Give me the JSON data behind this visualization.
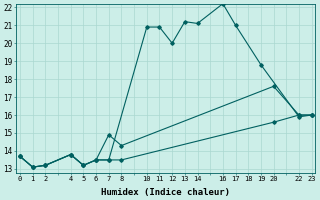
{
  "xlabel": "Humidex (Indice chaleur)",
  "bg_color": "#cceee8",
  "line_color": "#006060",
  "grid_color": "#aad8d0",
  "ylim": [
    13,
    22
  ],
  "xlim": [
    -0.3,
    23.3
  ],
  "yticks": [
    13,
    14,
    15,
    16,
    17,
    18,
    19,
    20,
    21,
    22
  ],
  "xticks": [
    0,
    1,
    2,
    3,
    4,
    5,
    6,
    7,
    8,
    9,
    10,
    11,
    12,
    13,
    14,
    15,
    16,
    17,
    18,
    19,
    20,
    21,
    22,
    23
  ],
  "xtick_labels": [
    "0",
    "1",
    "2",
    "",
    "4",
    "5",
    "6",
    "7",
    "8",
    "",
    "10",
    "11",
    "12",
    "13",
    "14",
    "",
    "16",
    "17",
    "18",
    "19",
    "20",
    "",
    "22",
    "23"
  ],
  "line1_x": [
    0,
    1,
    2,
    4,
    5,
    6,
    7,
    10,
    11,
    12,
    13,
    14,
    16,
    17,
    19,
    22,
    23
  ],
  "line1_y": [
    13.7,
    13.1,
    13.2,
    13.8,
    13.2,
    13.5,
    13.5,
    20.9,
    20.9,
    20.0,
    21.2,
    21.1,
    22.2,
    21.0,
    18.8,
    15.9,
    16.0
  ],
  "line2_x": [
    0,
    1,
    2,
    4,
    5,
    6,
    7,
    8,
    20,
    22,
    23
  ],
  "line2_y": [
    13.7,
    13.1,
    13.2,
    13.8,
    13.2,
    13.5,
    14.9,
    14.3,
    17.6,
    16.0,
    16.0
  ],
  "line3_x": [
    0,
    1,
    2,
    4,
    5,
    6,
    7,
    8,
    20,
    22,
    23
  ],
  "line3_y": [
    13.7,
    13.1,
    13.2,
    13.8,
    13.2,
    13.5,
    13.5,
    13.5,
    15.6,
    16.0,
    16.0
  ]
}
